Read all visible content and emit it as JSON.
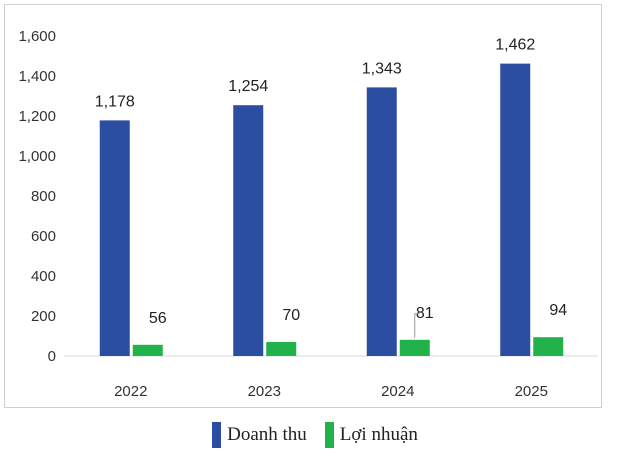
{
  "chart_data": {
    "type": "bar",
    "categories": [
      "2022",
      "2023",
      "2024",
      "2025"
    ],
    "series": [
      {
        "name": "Doanh thu",
        "values": [
          1178,
          1254,
          1343,
          1462
        ],
        "labels": [
          "1,178",
          "1,254",
          "1,343",
          "1,462"
        ],
        "color": "#2b4ea2"
      },
      {
        "name": "Lợi nhuận",
        "values": [
          56,
          70,
          81,
          94
        ],
        "labels": [
          "56",
          "70",
          "81",
          "94"
        ],
        "color": "#22b24c"
      }
    ],
    "ylim": [
      0,
      1600
    ],
    "yticks": [
      0,
      200,
      400,
      600,
      800,
      1000,
      1200,
      1400,
      1600
    ],
    "ytick_labels": [
      "0",
      "200",
      "400",
      "600",
      "800",
      "1,000",
      "1,200",
      "1,400",
      "1,600"
    ],
    "grid": false,
    "legend_position": "bottom",
    "title": "",
    "xlabel": "",
    "ylabel": ""
  }
}
